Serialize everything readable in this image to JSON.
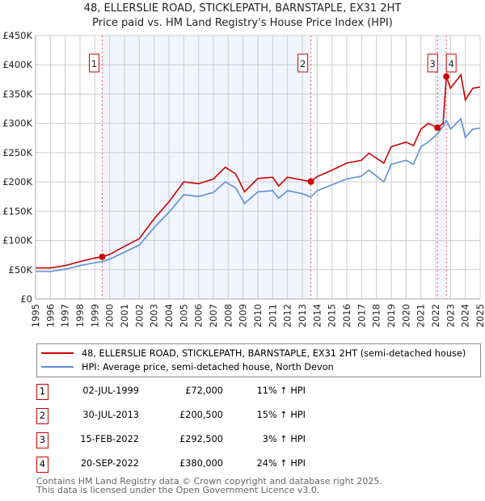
{
  "chart_data": {
    "type": "line",
    "title": "48, ELLERSLIE ROAD, STICKLEPATH, BARNSTAPLE, EX31 2HT",
    "subtitle": "Price paid vs. HM Land Registry's House Price Index (HPI)",
    "xlim": [
      1995,
      2025
    ],
    "ylim": [
      0,
      450000
    ],
    "y_ticks": [
      0,
      50000,
      100000,
      150000,
      200000,
      250000,
      300000,
      350000,
      400000,
      450000
    ],
    "y_tick_labels": [
      "£0",
      "£50K",
      "£100K",
      "£150K",
      "£200K",
      "£250K",
      "£300K",
      "£350K",
      "£400K",
      "£450K"
    ],
    "x_ticks": [
      1995,
      1996,
      1997,
      1998,
      1999,
      2000,
      2001,
      2002,
      2003,
      2004,
      2005,
      2006,
      2007,
      2008,
      2009,
      2010,
      2011,
      2012,
      2013,
      2014,
      2015,
      2016,
      2017,
      2018,
      2019,
      2020,
      2021,
      2022,
      2023,
      2024,
      2025
    ],
    "grid": true,
    "x": [
      1995,
      1996,
      1997,
      1998,
      1999,
      1999.5,
      2000,
      2001,
      2002,
      2003,
      2004,
      2005,
      2006,
      2007,
      2007.8,
      2008.5,
      2009.1,
      2010,
      2011,
      2011.4,
      2012,
      2013,
      2013.58,
      2014,
      2015,
      2016,
      2017,
      2017.5,
      2018.5,
      2019,
      2020,
      2020.5,
      2021,
      2021.5,
      2022.12,
      2022.5,
      2022.72,
      2023,
      2023.7,
      2024,
      2024.5,
      2025
    ],
    "series": [
      {
        "name": "48, ELLERSLIE ROAD, STICKLEPATH, BARNSTAPLE, EX31 2HT (semi-detached house)",
        "color": "#cc0000",
        "values": [
          53000,
          53000,
          57000,
          64000,
          70000,
          72000,
          76000,
          90000,
          103000,
          137000,
          166000,
          200000,
          197000,
          205000,
          225000,
          214000,
          183000,
          206000,
          208000,
          193000,
          208000,
          203000,
          200500,
          209000,
          220000,
          232000,
          237000,
          249000,
          232000,
          260000,
          268000,
          262000,
          290000,
          300000,
          292500,
          300000,
          380000,
          360000,
          383000,
          340000,
          360000,
          362000
        ]
      },
      {
        "name": "HPI: Average price, semi-detached house, North Devon",
        "color": "#5b8fd6",
        "values": [
          47000,
          47000,
          51000,
          57000,
          62000,
          64000,
          68000,
          80000,
          92000,
          122000,
          148000,
          178000,
          175000,
          182000,
          200000,
          190000,
          163000,
          183000,
          185000,
          172000,
          185000,
          180000,
          174000,
          185000,
          195000,
          205000,
          210000,
          220000,
          200000,
          230000,
          237000,
          230000,
          260000,
          268000,
          282000,
          295000,
          305000,
          290000,
          308000,
          276000,
          290000,
          292000
        ]
      }
    ],
    "sales": [
      {
        "id": "1",
        "x": 1999.5,
        "date": "02-JUL-1999",
        "price": 72000,
        "price_label": "£72,000",
        "hpi": "11% ↑ HPI"
      },
      {
        "id": "2",
        "x": 2013.58,
        "date": "30-JUL-2013",
        "price": 200500,
        "price_label": "£200,500",
        "hpi": "15% ↑ HPI"
      },
      {
        "id": "3",
        "x": 2022.12,
        "date": "15-FEB-2022",
        "price": 292500,
        "price_label": "£292,500",
        "hpi": "3% ↑ HPI"
      },
      {
        "id": "4",
        "x": 2022.72,
        "date": "20-SEP-2022",
        "price": 380000,
        "price_label": "£380,000",
        "hpi": "24% ↑ HPI"
      }
    ],
    "legend_placement": "bottom"
  },
  "footer": {
    "line1": "Contains HM Land Registry data © Crown copyright and database right 2025.",
    "line2": "This data is licensed under the Open Government Licence v3.0."
  }
}
